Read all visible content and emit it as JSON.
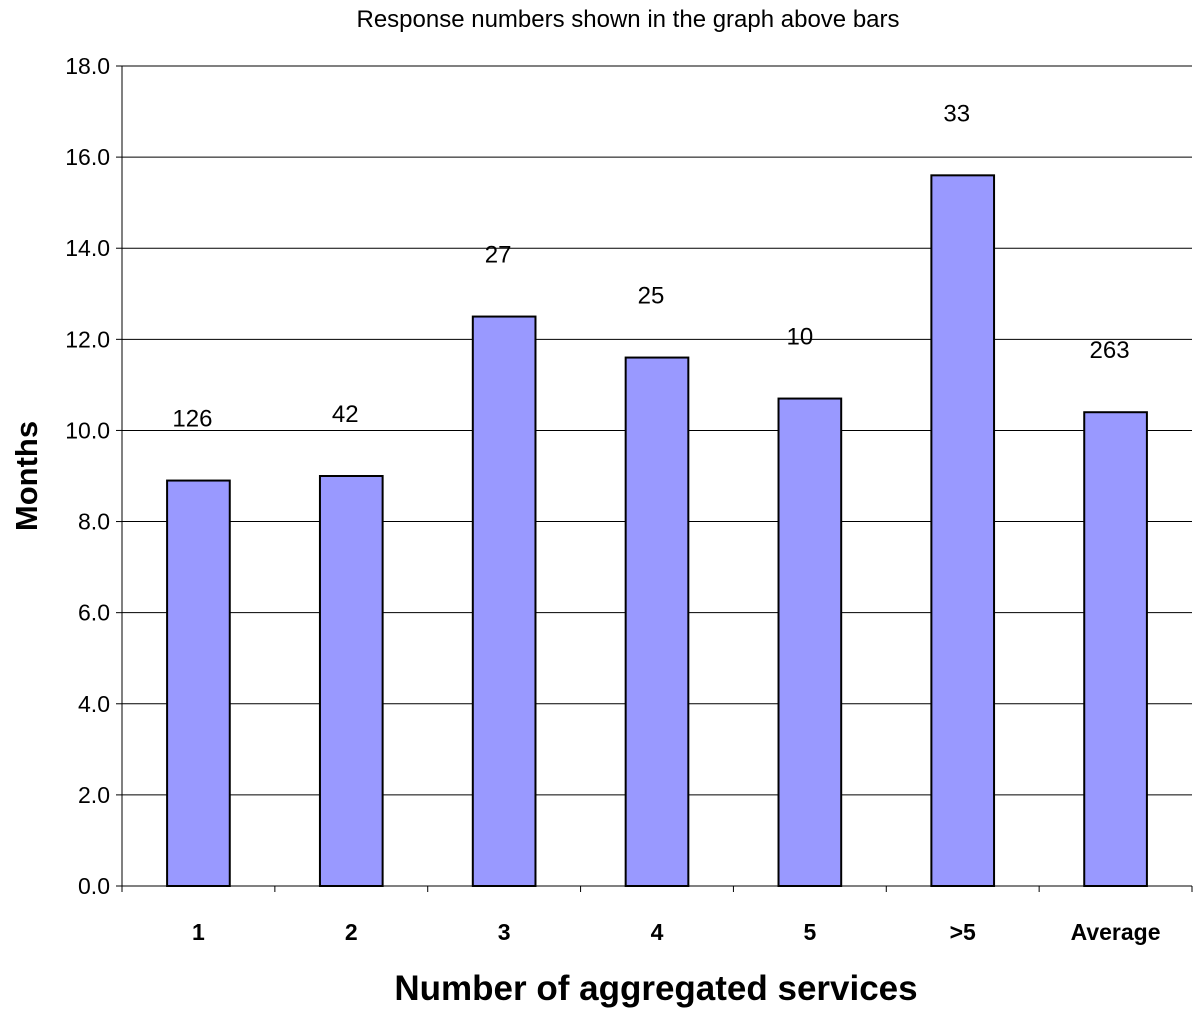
{
  "chart_data": {
    "type": "bar",
    "title": "Response numbers shown in the graph above bars",
    "xlabel": "Number of aggregated services",
    "ylabel": "Months",
    "ylim": [
      0,
      18
    ],
    "yticks": [
      "0.0",
      "2.0",
      "4.0",
      "6.0",
      "8.0",
      "10.0",
      "12.0",
      "14.0",
      "16.0",
      "18.0"
    ],
    "categories": [
      "1",
      "2",
      "3",
      "4",
      "5",
      ">5",
      "Average"
    ],
    "values": [
      8.9,
      9.0,
      12.5,
      11.6,
      10.7,
      15.6,
      10.4
    ],
    "data_labels": [
      "126",
      "42",
      "27",
      "25",
      "10",
      "33",
      "263"
    ],
    "grid": true,
    "legend": "none",
    "colors": {
      "bar_fill": "#9999ff",
      "bar_stroke": "#000000",
      "grid": "#000000"
    }
  }
}
